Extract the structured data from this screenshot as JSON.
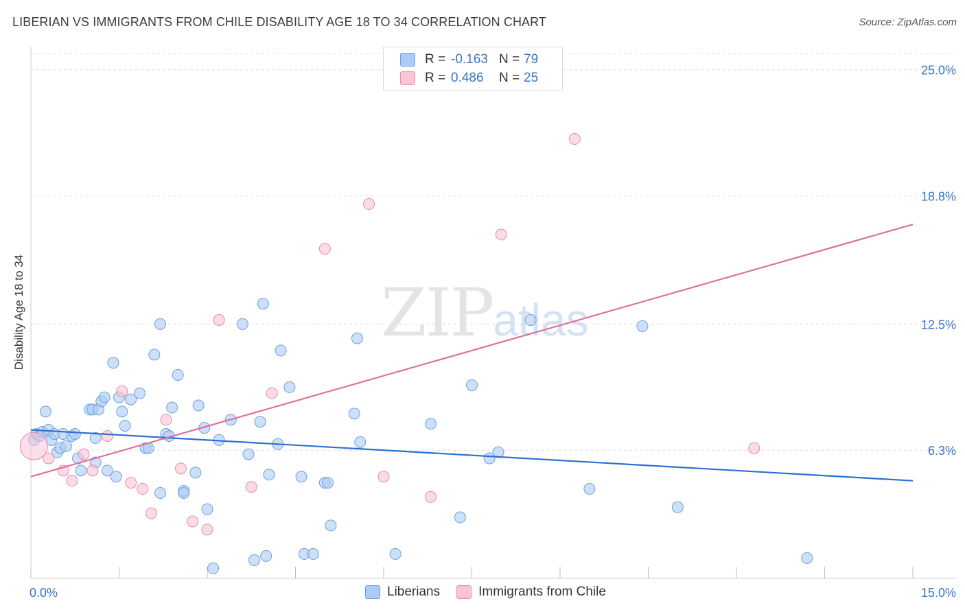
{
  "title": "LIBERIAN VS IMMIGRANTS FROM CHILE DISABILITY AGE 18 TO 34 CORRELATION CHART",
  "source": "Source: ZipAtlas.com",
  "watermark": {
    "zip": "ZIP",
    "atlas": "atlas"
  },
  "legend": {
    "r_label": "R =",
    "n_label": "N =",
    "rows": [
      {
        "r": "-0.163",
        "n": "79",
        "color": "#aecbf5"
      },
      {
        "r": "0.486",
        "n": "25",
        "color": "#f9c5d5"
      }
    ]
  },
  "bottom_legend": [
    {
      "label": "Liberians",
      "color": "#aecbf5"
    },
    {
      "label": "Immigrants from Chile",
      "color": "#f9c5d5"
    }
  ],
  "chart_data": {
    "type": "scatter",
    "title": "LIBERIAN VS IMMIGRANTS FROM CHILE DISABILITY AGE 18 TO 34 CORRELATION CHART",
    "xlabel": "",
    "ylabel": "Disability Age 18 to 34",
    "xlim": [
      0,
      15
    ],
    "ylim": [
      0,
      25.8
    ],
    "x_tick_labels": [
      "0.0%",
      "15.0%"
    ],
    "y_ticks": [
      6.3,
      12.5,
      18.8,
      25.0
    ],
    "y_tick_labels": [
      "6.3%",
      "12.5%",
      "18.8%",
      "25.0%"
    ],
    "grid": true,
    "legend_position": "top-center",
    "series": [
      {
        "name": "Liberians",
        "color": "#6a9fdf",
        "fill": "#aecbf5",
        "trend": {
          "x": [
            0,
            15
          ],
          "y": [
            7.3,
            4.8
          ],
          "color": "#2d6fd0"
        },
        "points": [
          [
            0.05,
            6.8
          ],
          [
            0.1,
            7.1
          ],
          [
            0.15,
            7.0
          ],
          [
            0.2,
            7.2
          ],
          [
            0.25,
            8.2
          ],
          [
            0.3,
            7.3
          ],
          [
            0.35,
            6.8
          ],
          [
            0.4,
            7.1
          ],
          [
            0.45,
            6.2
          ],
          [
            0.5,
            6.4
          ],
          [
            0.55,
            7.1
          ],
          [
            0.6,
            6.5
          ],
          [
            0.7,
            7.0
          ],
          [
            0.75,
            7.1
          ],
          [
            0.8,
            5.9
          ],
          [
            0.85,
            5.3
          ],
          [
            1.0,
            8.3
          ],
          [
            1.05,
            8.3
          ],
          [
            1.1,
            6.9
          ],
          [
            1.15,
            8.3
          ],
          [
            1.2,
            8.7
          ],
          [
            1.25,
            8.9
          ],
          [
            1.3,
            5.3
          ],
          [
            1.4,
            10.6
          ],
          [
            1.45,
            5.0
          ],
          [
            1.5,
            8.9
          ],
          [
            1.55,
            8.2
          ],
          [
            1.6,
            7.5
          ],
          [
            1.7,
            8.8
          ],
          [
            1.85,
            9.1
          ],
          [
            1.95,
            6.4
          ],
          [
            2.0,
            6.4
          ],
          [
            2.1,
            11.0
          ],
          [
            2.2,
            4.2
          ],
          [
            2.2,
            12.5
          ],
          [
            2.3,
            7.1
          ],
          [
            2.35,
            7.0
          ],
          [
            2.4,
            8.4
          ],
          [
            2.5,
            10.0
          ],
          [
            2.6,
            4.3
          ],
          [
            2.8,
            5.2
          ],
          [
            2.85,
            8.5
          ],
          [
            2.95,
            7.4
          ],
          [
            3.0,
            3.4
          ],
          [
            3.1,
            0.5
          ],
          [
            3.2,
            6.8
          ],
          [
            3.4,
            7.8
          ],
          [
            3.6,
            12.5
          ],
          [
            3.7,
            6.1
          ],
          [
            3.8,
            0.9
          ],
          [
            3.9,
            7.7
          ],
          [
            3.95,
            13.5
          ],
          [
            4.0,
            1.1
          ],
          [
            4.05,
            5.1
          ],
          [
            4.2,
            6.6
          ],
          [
            4.25,
            11.2
          ],
          [
            4.4,
            9.4
          ],
          [
            4.6,
            5.0
          ],
          [
            4.65,
            1.2
          ],
          [
            4.8,
            1.2
          ],
          [
            5.0,
            4.7
          ],
          [
            5.05,
            4.7
          ],
          [
            5.1,
            2.6
          ],
          [
            5.5,
            8.1
          ],
          [
            5.55,
            11.8
          ],
          [
            5.6,
            6.7
          ],
          [
            6.2,
            1.2
          ],
          [
            6.8,
            7.6
          ],
          [
            7.3,
            3.0
          ],
          [
            7.5,
            9.5
          ],
          [
            7.8,
            5.9
          ],
          [
            7.95,
            6.2
          ],
          [
            8.5,
            12.7
          ],
          [
            9.5,
            4.4
          ],
          [
            10.4,
            12.4
          ],
          [
            11.0,
            3.5
          ],
          [
            13.2,
            1.0
          ],
          [
            1.1,
            5.7
          ],
          [
            2.6,
            4.2
          ]
        ]
      },
      {
        "name": "Immigrants from Chile",
        "color": "#e88aa8",
        "fill": "#f9c5d5",
        "trend": {
          "x": [
            0,
            15
          ],
          "y": [
            5.0,
            17.4
          ],
          "color": "#e0709a"
        },
        "points": [
          [
            0.05,
            6.5
          ],
          [
            0.3,
            5.9
          ],
          [
            0.55,
            5.3
          ],
          [
            0.7,
            4.8
          ],
          [
            0.9,
            6.1
          ],
          [
            1.05,
            5.3
          ],
          [
            1.3,
            7.0
          ],
          [
            1.55,
            9.2
          ],
          [
            1.7,
            4.7
          ],
          [
            1.9,
            4.4
          ],
          [
            2.05,
            3.2
          ],
          [
            2.3,
            7.8
          ],
          [
            2.55,
            5.4
          ],
          [
            2.75,
            2.8
          ],
          [
            3.0,
            2.4
          ],
          [
            3.2,
            12.7
          ],
          [
            3.75,
            4.5
          ],
          [
            4.1,
            9.1
          ],
          [
            5.0,
            16.2
          ],
          [
            5.75,
            18.4
          ],
          [
            6.0,
            5.0
          ],
          [
            6.8,
            4.0
          ],
          [
            8.0,
            16.9
          ],
          [
            9.25,
            21.6
          ],
          [
            12.3,
            6.4
          ]
        ]
      }
    ]
  }
}
